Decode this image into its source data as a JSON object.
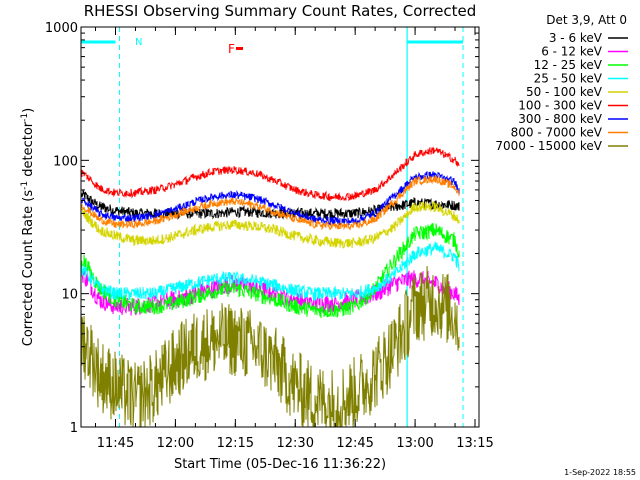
{
  "chart_data": {
    "type": "line",
    "title": "RHESSI Observing Summary Count Rates, Corrected",
    "xlabel": "Start Time (05-Dec-16 11:36:22)",
    "ylabel_main": "Corrected Count Rate (s",
    "ylabel_sup1": "-1",
    "ylabel_mid": " detector",
    "ylabel_sup2": "-1",
    "ylabel_end": ")",
    "yscale": "log",
    "ylim": [
      1,
      1000
    ],
    "xlim": [
      "11:36:22",
      "13:16:00"
    ],
    "x_ticks": [
      "11:45",
      "12:00",
      "12:15",
      "12:30",
      "12:45",
      "13:00",
      "13:15"
    ],
    "y_ticks": [
      "1",
      "10",
      "100",
      "1000"
    ],
    "legend_title": "Det 3,9, Att 0",
    "legend_position": "right",
    "flag_label": "F",
    "flag_n_label": "N",
    "timestamp": "1-Sep-2022 18:55",
    "series": [
      {
        "name": "3 - 6 keV",
        "color": "#000000",
        "x": [
          "11:37",
          "11:41",
          "11:45",
          "11:50",
          "11:55",
          "12:00",
          "12:05",
          "12:10",
          "12:15",
          "12:20",
          "12:25",
          "12:30",
          "12:35",
          "12:40",
          "12:45",
          "12:50",
          "12:55",
          "13:00",
          "13:05",
          "13:10",
          "13:11"
        ],
        "values": [
          55,
          45,
          42,
          40,
          40,
          40,
          40,
          40,
          41,
          41,
          40,
          40,
          40,
          40,
          40,
          42,
          45,
          48,
          47,
          46,
          45
        ]
      },
      {
        "name": "6 - 12 keV",
        "color": "#ff00ff",
        "x": [
          "11:37",
          "11:41",
          "11:45",
          "11:50",
          "11:55",
          "12:00",
          "12:05",
          "12:10",
          "12:15",
          "12:20",
          "12:25",
          "12:30",
          "12:35",
          "12:40",
          "12:45",
          "12:50",
          "12:55",
          "13:00",
          "13:05",
          "13:10",
          "13:11"
        ],
        "values": [
          14,
          9,
          8,
          8,
          8.5,
          9,
          10,
          11,
          12,
          11,
          10,
          9,
          8.5,
          8.5,
          9,
          10,
          12,
          13,
          12,
          10,
          9
        ]
      },
      {
        "name": "12 - 25 keV",
        "color": "#00ff00",
        "x": [
          "11:37",
          "11:41",
          "11:45",
          "11:50",
          "11:55",
          "12:00",
          "12:05",
          "12:10",
          "12:15",
          "12:20",
          "12:25",
          "12:30",
          "12:35",
          "12:40",
          "12:45",
          "12:50",
          "12:55",
          "13:00",
          "13:05",
          "13:10",
          "13:11"
        ],
        "values": [
          18,
          11,
          9,
          8,
          8,
          8.5,
          9.5,
          10.5,
          11,
          10,
          9,
          8,
          7.5,
          7.5,
          8,
          11,
          18,
          28,
          30,
          25,
          20
        ]
      },
      {
        "name": "25 - 50 keV",
        "color": "#00ffff",
        "x": [
          "11:37",
          "11:41",
          "11:45",
          "11:50",
          "11:55",
          "12:00",
          "12:05",
          "12:10",
          "12:15",
          "12:20",
          "12:25",
          "12:30",
          "12:35",
          "12:40",
          "12:45",
          "12:50",
          "12:55",
          "13:00",
          "13:05",
          "13:10",
          "13:11"
        ],
        "values": [
          15,
          11,
          10,
          10,
          10,
          11,
          12,
          13,
          13,
          12.5,
          11.5,
          10.5,
          10,
          10,
          10,
          11,
          14,
          20,
          22,
          19,
          16
        ]
      },
      {
        "name": "50 - 100 keV",
        "color": "#d4d400",
        "x": [
          "11:37",
          "11:41",
          "11:45",
          "11:50",
          "11:55",
          "12:00",
          "12:05",
          "12:10",
          "12:15",
          "12:20",
          "12:25",
          "12:30",
          "12:35",
          "12:40",
          "12:45",
          "12:50",
          "12:55",
          "13:00",
          "13:05",
          "13:10",
          "13:11"
        ],
        "values": [
          40,
          30,
          27,
          25,
          25,
          27,
          30,
          32,
          33,
          32,
          30,
          27,
          25,
          24,
          24,
          26,
          32,
          45,
          45,
          38,
          35
        ]
      },
      {
        "name": "100 - 300 keV",
        "color": "#ff0000",
        "x": [
          "11:37",
          "11:41",
          "11:45",
          "11:50",
          "11:55",
          "12:00",
          "12:05",
          "12:10",
          "12:15",
          "12:20",
          "12:25",
          "12:30",
          "12:35",
          "12:40",
          "12:45",
          "12:50",
          "12:55",
          "13:00",
          "13:05",
          "13:10",
          "13:11"
        ],
        "values": [
          80,
          62,
          57,
          57,
          60,
          66,
          75,
          83,
          85,
          80,
          70,
          60,
          55,
          53,
          54,
          60,
          80,
          110,
          120,
          100,
          90
        ]
      },
      {
        "name": "300 - 800 keV",
        "color": "#0000ff",
        "x": [
          "11:37",
          "11:41",
          "11:45",
          "11:50",
          "11:55",
          "12:00",
          "12:05",
          "12:10",
          "12:15",
          "12:20",
          "12:25",
          "12:30",
          "12:35",
          "12:40",
          "12:45",
          "12:50",
          "12:55",
          "13:00",
          "13:05",
          "13:10",
          "13:11"
        ],
        "values": [
          50,
          40,
          37,
          37,
          39,
          43,
          49,
          54,
          55,
          52,
          46,
          40,
          36,
          35,
          35,
          40,
          55,
          75,
          78,
          68,
          60
        ]
      },
      {
        "name": "800 - 7000 keV",
        "color": "#ff8000",
        "x": [
          "11:37",
          "11:41",
          "11:45",
          "11:50",
          "11:55",
          "12:00",
          "12:05",
          "12:10",
          "12:15",
          "12:20",
          "12:25",
          "12:30",
          "12:35",
          "12:40",
          "12:45",
          "12:50",
          "12:55",
          "13:00",
          "13:05",
          "13:10",
          "13:11"
        ],
        "values": [
          45,
          36,
          33,
          33,
          35,
          39,
          44,
          48,
          49,
          46,
          41,
          36,
          33,
          32,
          32,
          36,
          50,
          70,
          73,
          63,
          55
        ]
      },
      {
        "name": "7000 - 15000 keV",
        "color": "#808000",
        "x": [
          "11:37",
          "11:41",
          "11:45",
          "11:50",
          "11:55",
          "12:00",
          "12:05",
          "12:10",
          "12:15",
          "12:20",
          "12:25",
          "12:30",
          "12:35",
          "12:40",
          "12:45",
          "12:50",
          "12:55",
          "13:00",
          "13:05",
          "13:10",
          "13:11"
        ],
        "values": [
          4.5,
          2.5,
          2,
          1.6,
          2,
          3,
          4,
          4.5,
          4.5,
          4,
          3,
          2,
          1.6,
          1.5,
          1.8,
          2.5,
          4,
          8,
          9,
          7,
          5.5
        ]
      }
    ]
  }
}
